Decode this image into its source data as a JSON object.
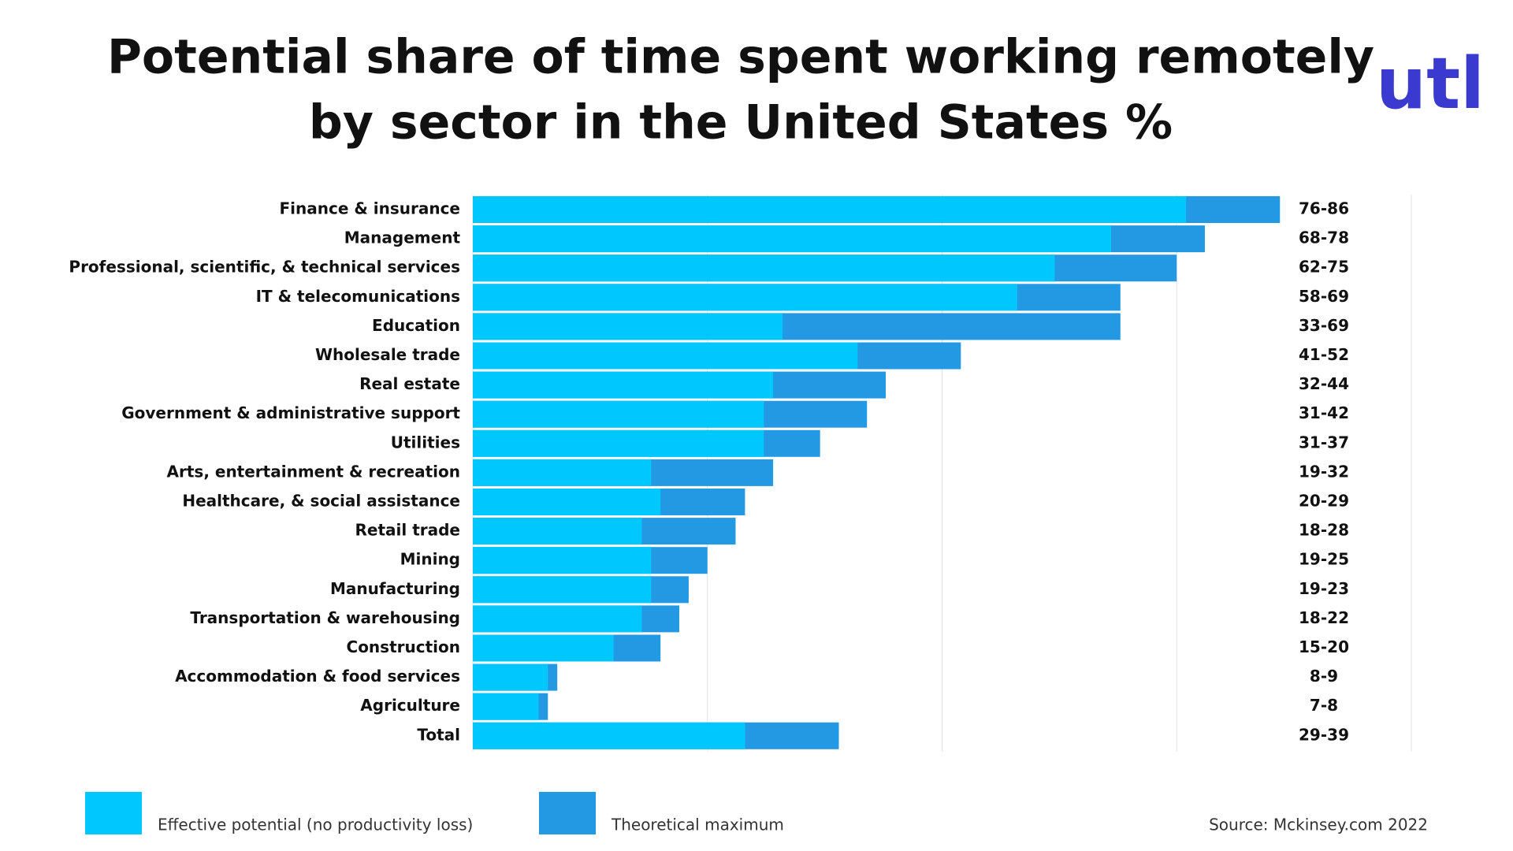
{
  "chart_data": {
    "type": "bar",
    "orientation": "horizontal",
    "overlap": true,
    "title": [
      "Potential share of time spent working remotely",
      "by sector in the United States %"
    ],
    "logo": "utl",
    "categories": [
      "Finance & insurance",
      "Management",
      "Professional, scientific, & technical services",
      "IT & telecomunications",
      "Education",
      "Wholesale trade",
      "Real estate",
      "Government & administrative support",
      "Utilities",
      "Arts, entertainment & recreation",
      "Healthcare, & social assistance",
      "Retail trade",
      "Mining",
      "Manufacturing",
      "Transportation & warehousing",
      "Construction",
      "Accommodation & food services",
      "Agriculture",
      "Total"
    ],
    "series": [
      {
        "name": "Theoretical maximum",
        "color": "#2499e3",
        "values": [
          86,
          78,
          75,
          69,
          69,
          52,
          44,
          42,
          37,
          32,
          29,
          28,
          25,
          23,
          22,
          20,
          9,
          8,
          39
        ]
      },
      {
        "name": "Effective potential (no productivity loss)",
        "color": "#00c8ff",
        "values": [
          76,
          68,
          62,
          58,
          33,
          41,
          32,
          31,
          31,
          19,
          20,
          18,
          19,
          19,
          18,
          15,
          8,
          7,
          29
        ]
      }
    ],
    "value_labels": [
      "76-86",
      "68-78",
      "62-75",
      "58-69",
      "33-69",
      "41-52",
      "32-44",
      "31-42",
      "31-37",
      "19-32",
      "20-29",
      "18-28",
      "19-25",
      "19-23",
      "18-22",
      "15-20",
      "8-9",
      "7-8",
      "29-39"
    ],
    "xlim": [
      0,
      100
    ],
    "xticks": [
      0,
      25,
      50,
      75,
      100
    ],
    "grid": true,
    "source": "Source: Mckinsey.com 2022"
  }
}
